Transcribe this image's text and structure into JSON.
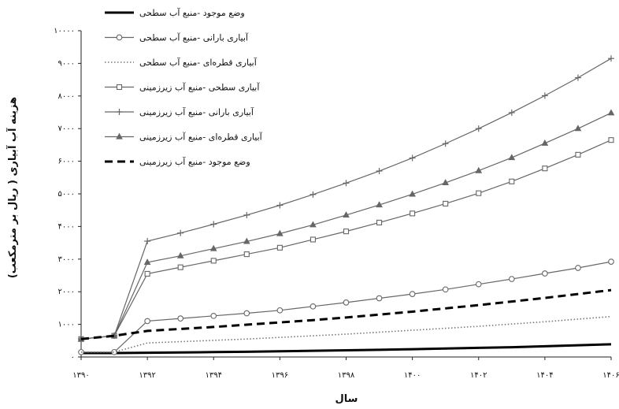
{
  "chart_data": {
    "type": "line",
    "x": [
      1390,
      1391,
      1392,
      1393,
      1394,
      1395,
      1396,
      1397,
      1398,
      1399,
      1400,
      1401,
      1402,
      1403,
      1404,
      1405,
      1406
    ],
    "x_ticks": [
      1390,
      1392,
      1394,
      1396,
      1398,
      1400,
      1402,
      1404,
      1406
    ],
    "x_tick_labels": [
      "۱۳۹۰",
      "۱۳۹۲",
      "۱۳۹۴",
      "۱۳۹۶",
      "۱۳۹۸",
      "۱۴۰۰",
      "۱۴۰۲",
      "۱۴۰۴",
      "۱۴۰۶"
    ],
    "xlabel": "سال",
    "xlim": [
      1390,
      1406
    ],
    "ylabel": "هزینه آب آبیاری ( ریال بر مترمکعب)",
    "ylim": [
      0,
      10000
    ],
    "y_ticks": [
      0,
      1000,
      2000,
      3000,
      4000,
      5000,
      6000,
      7000,
      8000,
      9000,
      10000
    ],
    "y_tick_labels": [
      "۰",
      "۱۰۰۰",
      "۲۰۰۰",
      "۳۰۰۰",
      "۴۰۰۰",
      "۵۰۰۰",
      "۶۰۰۰",
      "۷۰۰۰",
      "۸۰۰۰",
      "۹۰۰۰",
      "۱۰۰۰۰"
    ],
    "grid": false,
    "legend_position": "top-left",
    "series": [
      {
        "name": "وضع موجود -منبع آب سطحی",
        "style": "solid-thick",
        "marker": "none",
        "color": "#000000",
        "values": [
          120,
          120,
          130,
          140,
          150,
          160,
          175,
          190,
          205,
          220,
          240,
          260,
          280,
          300,
          330,
          360,
          390
        ]
      },
      {
        "name": "آبیاری بارانی -منبع آب سطحی",
        "style": "solid",
        "marker": "circle",
        "color": "#666666",
        "values": [
          150,
          150,
          1100,
          1180,
          1260,
          1340,
          1430,
          1550,
          1670,
          1800,
          1930,
          2070,
          2230,
          2390,
          2560,
          2730,
          2920
        ]
      },
      {
        "name": "آبیاری قطره‌ای -منبع آب سطحی",
        "style": "dotted",
        "marker": "none",
        "color": "#777777",
        "values": [
          150,
          150,
          430,
          470,
          510,
          550,
          600,
          650,
          700,
          760,
          820,
          880,
          940,
          1010,
          1080,
          1160,
          1240
        ]
      },
      {
        "name": "آبیاری سطحی -منبع آب زیرزمینی",
        "style": "solid",
        "marker": "square",
        "color": "#666666",
        "values": [
          550,
          650,
          2550,
          2750,
          2950,
          3150,
          3350,
          3600,
          3850,
          4120,
          4400,
          4700,
          5020,
          5380,
          5780,
          6200,
          6650
        ]
      },
      {
        "name": "آبیاری بارانی -منبع آب زیرزمینی",
        "style": "solid",
        "marker": "plus",
        "color": "#666666",
        "values": [
          550,
          650,
          3550,
          3800,
          4070,
          4350,
          4650,
          4980,
          5330,
          5700,
          6100,
          6540,
          7000,
          7490,
          8010,
          8560,
          9150
        ]
      },
      {
        "name": "آبیاری قطره‌ای -منبع آب زیرزمینی",
        "style": "solid",
        "marker": "triangle",
        "color": "#666666",
        "values": [
          550,
          650,
          2900,
          3100,
          3320,
          3540,
          3780,
          4050,
          4350,
          4660,
          4990,
          5340,
          5710,
          6110,
          6550,
          7000,
          7480
        ]
      },
      {
        "name": "وضع موجود -منبع آب زیرزمینی",
        "style": "dashed-thick",
        "marker": "none",
        "color": "#000000",
        "values": [
          550,
          650,
          800,
          860,
          920,
          990,
          1060,
          1130,
          1210,
          1300,
          1390,
          1490,
          1590,
          1700,
          1810,
          1930,
          2050
        ]
      }
    ]
  }
}
